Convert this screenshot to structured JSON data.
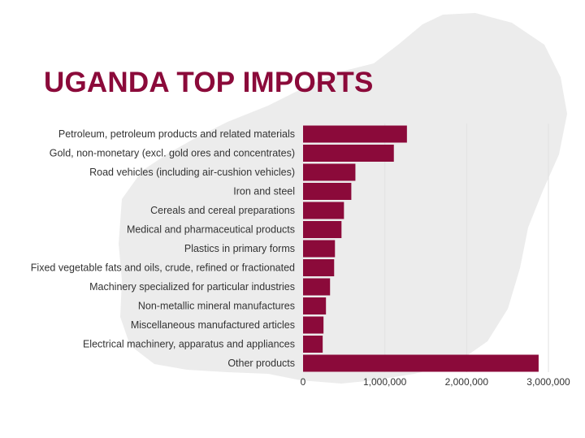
{
  "chart_data": {
    "type": "bar",
    "orientation": "horizontal",
    "title": "UGANDA TOP IMPORTS",
    "xlabel": "",
    "ylabel": "",
    "categories": [
      "Petroleum, petroleum products and related materials",
      "Gold, non-monetary (excl. gold ores and concentrates)",
      "Road vehicles (including air-cushion vehicles)",
      "Iron and steel",
      "Cereals and cereal preparations",
      "Medical and pharmaceutical products",
      "Plastics in primary forms",
      "Fixed vegetable fats and oils, crude, refined or fractionated",
      "Machinery specialized for particular industries",
      "Non-metallic mineral manufactures",
      "Miscellaneous manufactured articles",
      "Electrical machinery, apparatus and appliances",
      "Other products"
    ],
    "values": [
      1270000,
      1110000,
      640000,
      590000,
      500000,
      470000,
      390000,
      380000,
      330000,
      280000,
      250000,
      240000,
      2880000
    ],
    "xlim": [
      0,
      3000000
    ],
    "ticks": [
      0,
      1000000,
      2000000,
      3000000
    ],
    "tick_labels": [
      "0",
      "1,000,000",
      "2,000,000",
      "3,000,000"
    ],
    "grid": true,
    "legend": "none",
    "colors": {
      "bar": "#8b0a3a",
      "title": "#8b0a3a",
      "grid": "#e2e2e2",
      "map": "#ececec"
    }
  }
}
